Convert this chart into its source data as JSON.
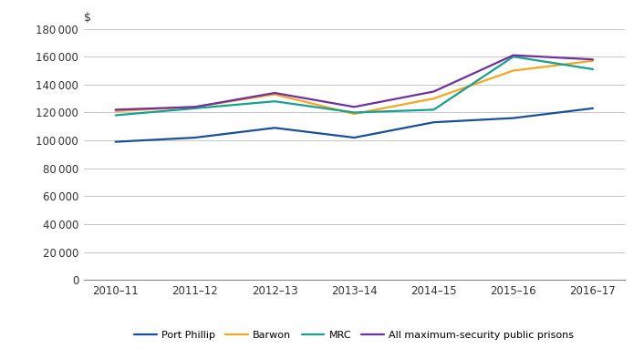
{
  "years": [
    "2010–11",
    "2011–12",
    "2012–13",
    "2013–14",
    "2014–15",
    "2015–16",
    "2016–17"
  ],
  "series": {
    "Port Phillip": [
      99000,
      102000,
      109000,
      102000,
      113000,
      116000,
      123000
    ],
    "Barwon": [
      121000,
      124000,
      133000,
      119000,
      130000,
      150000,
      157000
    ],
    "MRC": [
      118000,
      123000,
      128000,
      120000,
      122000,
      160000,
      151000
    ],
    "All maximum-security public prisons": [
      122000,
      124000,
      134000,
      124000,
      135000,
      161000,
      158000
    ]
  },
  "colors": {
    "Port Phillip": "#1a4f99",
    "Barwon": "#f5a623",
    "MRC": "#17a093",
    "All maximum-security public prisons": "#7030a0"
  },
  "ylabel": "$",
  "ylim": [
    0,
    180000
  ],
  "ytick_step": 20000,
  "background_color": "#ffffff",
  "grid_color": "#c8c8c8",
  "legend_order": [
    "Port Phillip",
    "Barwon",
    "MRC",
    "All maximum-security public prisons"
  ]
}
